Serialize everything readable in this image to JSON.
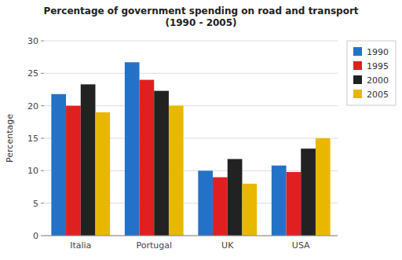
{
  "chart_data": {
    "type": "bar",
    "title": "Percentage of government spending on road and transport",
    "subtitle": "(1990 - 2005)",
    "categories": [
      "Italia",
      "Portugal",
      "UK",
      "USA"
    ],
    "series": [
      {
        "name": "1990",
        "color": "#2472c8",
        "values": [
          21.8,
          26.7,
          10.0,
          10.8
        ]
      },
      {
        "name": "1995",
        "color": "#e02020",
        "values": [
          20.0,
          24.0,
          9.0,
          9.8
        ]
      },
      {
        "name": "2000",
        "color": "#222222",
        "values": [
          23.3,
          22.3,
          11.8,
          13.4
        ]
      },
      {
        "name": "2005",
        "color": "#e8b800",
        "values": [
          19.0,
          20.0,
          8.0,
          15.0
        ]
      }
    ],
    "ylabel": "Percentage",
    "ylim": [
      0,
      30
    ],
    "yticks": [
      0,
      5,
      10,
      15,
      20,
      25,
      30
    ],
    "grid": true,
    "legend": "right"
  }
}
